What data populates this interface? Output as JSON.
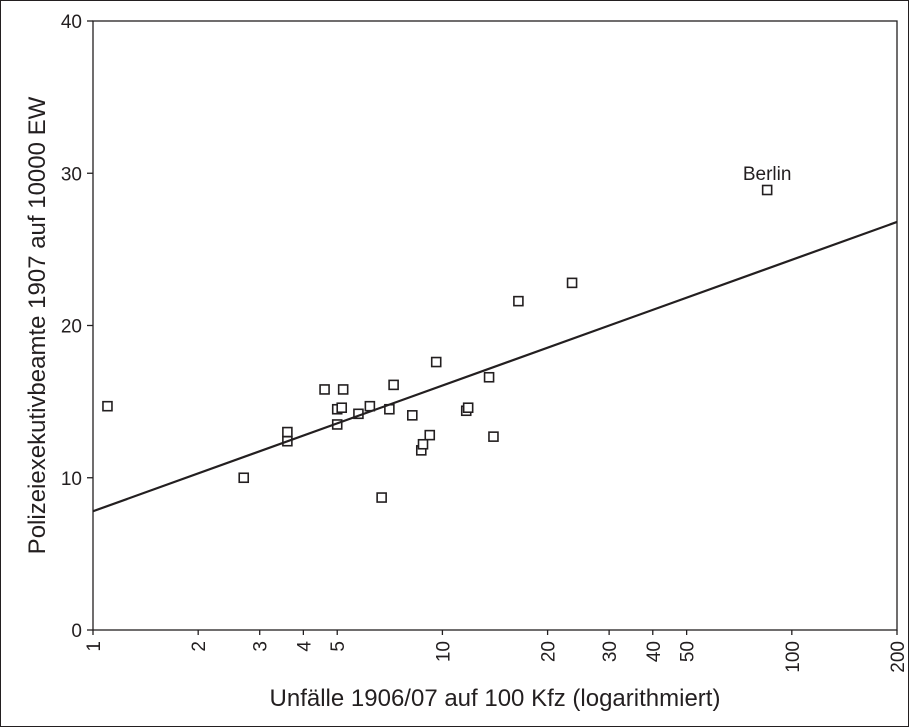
{
  "chart_data": {
    "type": "scatter",
    "title": "",
    "xlabel": "Unfälle 1906/07 auf 100 Kfz (logarithmiert)",
    "ylabel": "Polizeiexekutivbeamte 1907 auf 10000 EW",
    "x_scale": "log",
    "xlim": [
      1,
      200
    ],
    "ylim": [
      0,
      40
    ],
    "x_ticks": [
      1,
      2,
      3,
      4,
      5,
      10,
      20,
      30,
      40,
      50,
      100,
      200
    ],
    "x_tick_labels": [
      "1",
      "2",
      "3",
      "4",
      "5",
      "10",
      "20",
      "30",
      "40",
      "50",
      "100",
      "200"
    ],
    "y_ticks": [
      0,
      10,
      20,
      30,
      40
    ],
    "y_tick_labels": [
      "0",
      "10",
      "20",
      "30",
      "40"
    ],
    "grid": false,
    "marker": "open-square",
    "points": [
      {
        "x": 1.1,
        "y": 14.7
      },
      {
        "x": 2.7,
        "y": 10.0
      },
      {
        "x": 3.6,
        "y": 13.0
      },
      {
        "x": 3.6,
        "y": 12.4
      },
      {
        "x": 4.6,
        "y": 15.8
      },
      {
        "x": 5.0,
        "y": 14.5
      },
      {
        "x": 5.0,
        "y": 13.5
      },
      {
        "x": 5.15,
        "y": 14.6
      },
      {
        "x": 5.2,
        "y": 15.8
      },
      {
        "x": 5.75,
        "y": 14.2
      },
      {
        "x": 6.2,
        "y": 14.7
      },
      {
        "x": 6.7,
        "y": 8.7
      },
      {
        "x": 7.05,
        "y": 14.5
      },
      {
        "x": 7.25,
        "y": 16.1
      },
      {
        "x": 8.2,
        "y": 14.1
      },
      {
        "x": 8.7,
        "y": 11.8
      },
      {
        "x": 8.8,
        "y": 12.2
      },
      {
        "x": 9.2,
        "y": 12.8
      },
      {
        "x": 9.6,
        "y": 17.6
      },
      {
        "x": 11.7,
        "y": 14.4
      },
      {
        "x": 11.85,
        "y": 14.6
      },
      {
        "x": 13.6,
        "y": 16.6
      },
      {
        "x": 14.0,
        "y": 12.7
      },
      {
        "x": 16.5,
        "y": 21.6
      },
      {
        "x": 23.5,
        "y": 22.8
      },
      {
        "x": 85.0,
        "y": 28.9
      }
    ],
    "fit_line": {
      "x": [
        1,
        200
      ],
      "y": [
        7.8,
        26.8
      ]
    },
    "annotations": [
      {
        "text": "Berlin",
        "x": 85.0,
        "y": 28.9
      }
    ]
  }
}
